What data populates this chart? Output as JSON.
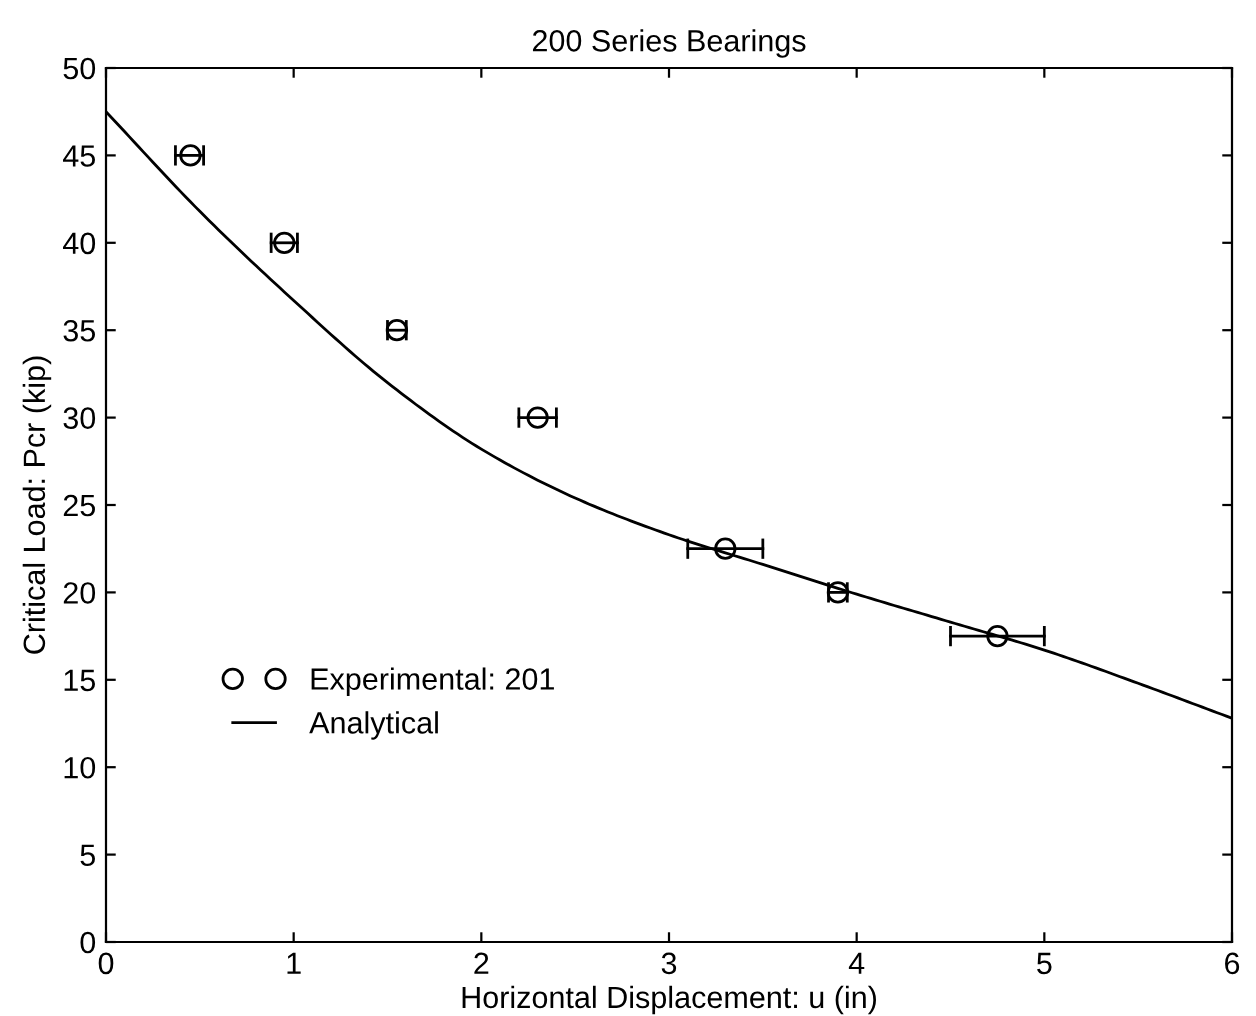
{
  "chart_data": {
    "type": "scatter",
    "title": "200 Series Bearings",
    "xlabel": "Horizontal Displacement: u (in)",
    "ylabel": "Critical Load: Pcr (kip)",
    "xlim": [
      0,
      6
    ],
    "ylim": [
      0,
      50
    ],
    "xticks": [
      0,
      1,
      2,
      3,
      4,
      5,
      6
    ],
    "yticks": [
      0,
      5,
      10,
      15,
      20,
      25,
      30,
      35,
      40,
      45,
      50
    ],
    "grid": false,
    "legend": "bottom left",
    "series": [
      {
        "name": "Experimental: 201",
        "type": "scatter",
        "marker": "circle",
        "color": "#000000",
        "x": [
          0.45,
          0.95,
          1.55,
          2.3,
          3.3,
          3.9,
          4.75
        ],
        "values": [
          45,
          40,
          35,
          30,
          22.5,
          20,
          17.5
        ],
        "xerrors": [
          [
            0.37,
            0.52
          ],
          [
            0.88,
            1.02
          ],
          [
            1.5,
            1.6
          ],
          [
            2.2,
            2.4
          ],
          [
            3.1,
            3.5
          ],
          [
            3.85,
            3.95
          ],
          [
            4.5,
            5.0
          ]
        ]
      },
      {
        "name": "Analytical",
        "type": "line",
        "line_style": "solid",
        "color": "#000000",
        "x": [
          0,
          0.5,
          1,
          1.5,
          2,
          2.5,
          3,
          3.5,
          4,
          4.5,
          5,
          5.5,
          6
        ],
        "values": [
          47.5,
          41.8,
          36.7,
          32.0,
          28.2,
          25.4,
          23.3,
          21.6,
          19.9,
          18.3,
          16.7,
          14.8,
          12.8
        ]
      }
    ]
  }
}
